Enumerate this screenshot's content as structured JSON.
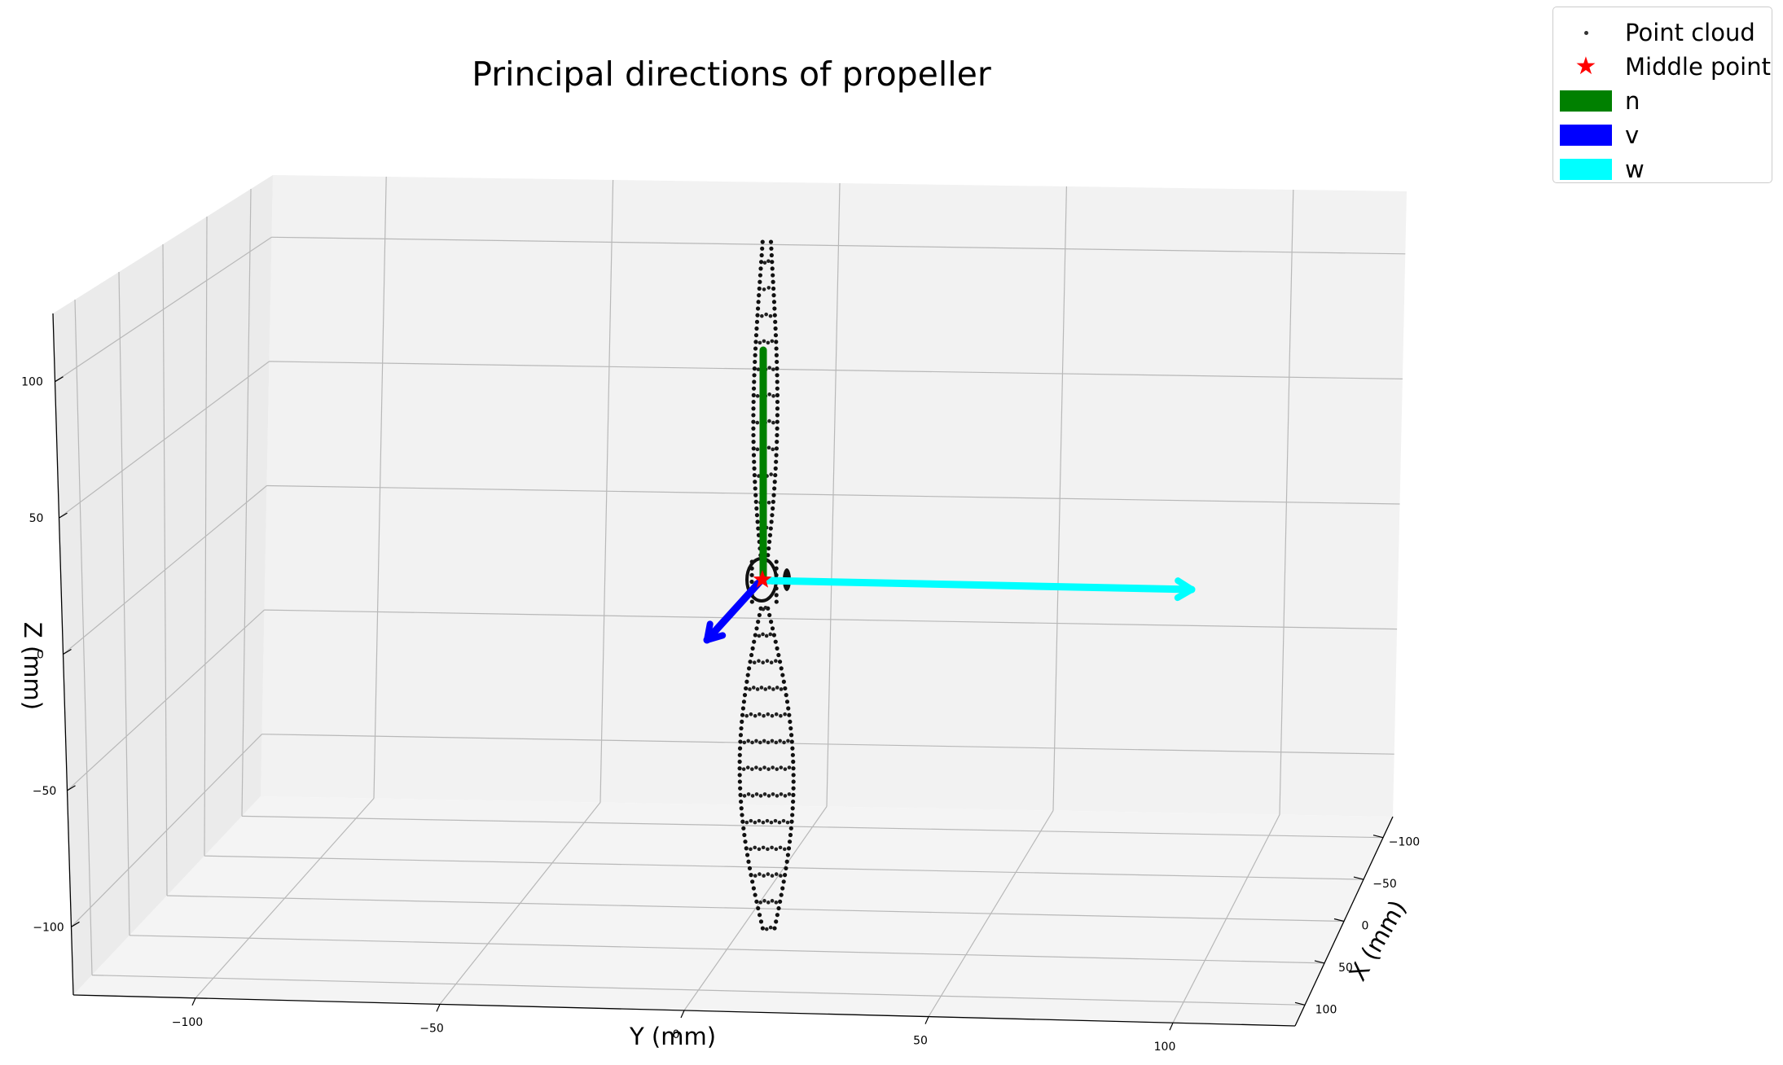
{
  "chart_data": {
    "type": "scatter",
    "projection": "3d",
    "title": "Principal directions of propeller",
    "xlabel": "X (mm)",
    "ylabel": "Y (mm)",
    "zlabel": "Z (mm)",
    "x_ticks": [
      "−100",
      "−50",
      "0",
      "50",
      "100"
    ],
    "y_ticks": [
      "−100",
      "−50",
      "0",
      "50",
      "100"
    ],
    "z_ticks": [
      "−100",
      "−50",
      "0",
      "50",
      "100"
    ],
    "xlim": [
      -125,
      125
    ],
    "ylim": [
      -125,
      125
    ],
    "zlim": [
      -125,
      125
    ],
    "grid": true,
    "legend_position": "top-right",
    "legend": [
      {
        "label": "Point cloud",
        "marker": "dot",
        "color": "#000000"
      },
      {
        "label": "Middle point",
        "marker": "star",
        "color": "#ff0000"
      },
      {
        "label": "n",
        "marker": "patch",
        "color": "#008000"
      },
      {
        "label": "v",
        "marker": "patch",
        "color": "#0000ff"
      },
      {
        "label": "w",
        "marker": "patch",
        "color": "#00ffff"
      }
    ],
    "middle_point": {
      "x": 0,
      "y": 0,
      "z": 0
    },
    "vectors": [
      {
        "name": "n",
        "color": "#008000",
        "from": [
          0,
          0,
          0
        ],
        "to": [
          0,
          0,
          90
        ]
      },
      {
        "name": "v",
        "color": "#0000ff",
        "from": [
          0,
          0,
          0
        ],
        "to": [
          -40,
          -25,
          -20
        ]
      },
      {
        "name": "w",
        "color": "#00ffff",
        "from": [
          0,
          0,
          0
        ],
        "to": [
          0,
          180,
          0
        ]
      }
    ],
    "point_cloud": {
      "description_shape": "propeller blades along Z",
      "z_range": [
        -115,
        115
      ]
    }
  }
}
